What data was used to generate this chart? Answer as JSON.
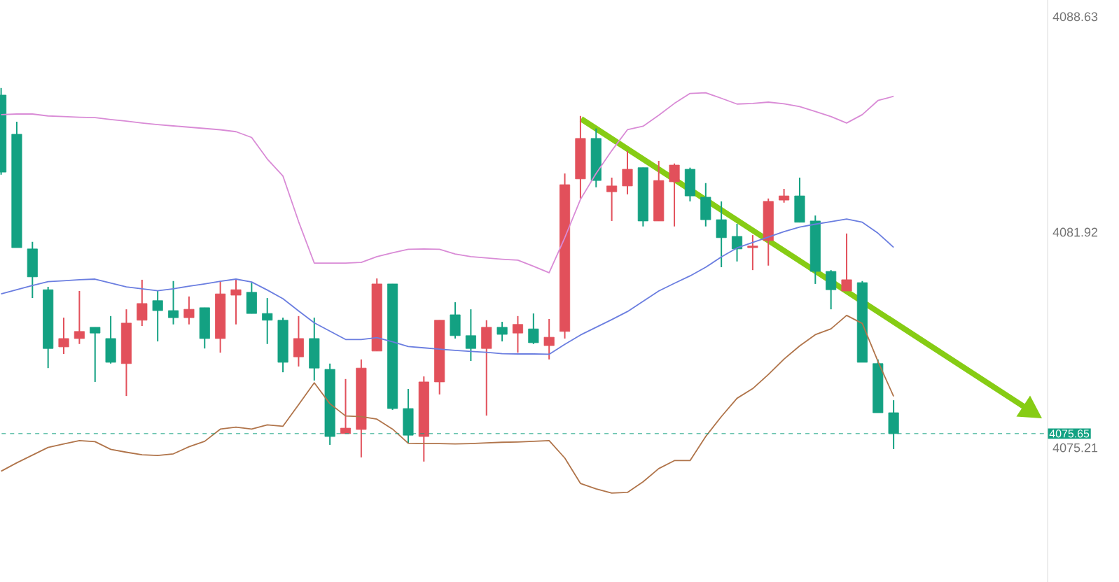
{
  "chart_data": {
    "type": "candlestick",
    "categories": [
      null,
      null,
      null,
      null,
      null,
      null,
      null,
      null,
      null,
      null,
      null,
      null,
      null,
      null,
      null,
      null,
      null,
      null,
      null,
      null,
      null,
      null,
      null,
      null,
      null,
      null,
      null,
      null,
      null,
      null,
      null,
      null,
      null,
      null,
      null,
      null,
      null,
      null,
      null,
      null,
      null,
      null,
      null,
      null,
      null,
      null,
      null,
      null,
      null,
      null,
      null,
      null,
      null,
      null,
      null,
      null,
      null,
      null
    ],
    "ohlc": [
      [
        4086.19,
        4086.41,
        4083.71,
        4083.79
      ],
      [
        4084.97,
        4085.36,
        4081.44,
        4081.44
      ],
      [
        4081.4,
        4081.62,
        4079.87,
        4080.53
      ],
      [
        4080.13,
        4080.22,
        4077.69,
        4078.3
      ],
      [
        4078.35,
        4079.26,
        4078.13,
        4078.61
      ],
      [
        4078.61,
        4080.09,
        4078.44,
        4078.83
      ],
      [
        4078.96,
        4078.96,
        4077.26,
        4078.78
      ],
      [
        4078.61,
        4079.31,
        4077.83,
        4077.87
      ],
      [
        4077.83,
        4079.52,
        4076.82,
        4079.09
      ],
      [
        4079.18,
        4080.44,
        4079.0,
        4079.7
      ],
      [
        4079.79,
        4080.09,
        4078.52,
        4079.48
      ],
      [
        4079.48,
        4080.4,
        4079.05,
        4079.26
      ],
      [
        4079.26,
        4079.92,
        4079.05,
        4079.52
      ],
      [
        4079.57,
        4079.57,
        4078.3,
        4078.61
      ],
      [
        4078.61,
        4080.4,
        4078.17,
        4080.0
      ],
      [
        4079.96,
        4080.44,
        4079.05,
        4080.13
      ],
      [
        4080.05,
        4080.35,
        4079.39,
        4079.39
      ],
      [
        4079.39,
        4079.87,
        4078.44,
        4079.18
      ],
      [
        4079.18,
        4079.26,
        4077.56,
        4077.87
      ],
      [
        4078.04,
        4079.31,
        4077.74,
        4078.61
      ],
      [
        4078.61,
        4079.26,
        4077.3,
        4077.69
      ],
      [
        4077.65,
        4077.83,
        4075.3,
        4075.56
      ],
      [
        4075.65,
        4077.35,
        4075.65,
        4075.82
      ],
      [
        4075.78,
        4077.96,
        4074.91,
        4077.69
      ],
      [
        4078.22,
        4080.48,
        4078.22,
        4080.31
      ],
      [
        4080.31,
        4080.31,
        4076.39,
        4076.43
      ],
      [
        4076.43,
        4077.04,
        4075.34,
        4075.6
      ],
      [
        4075.56,
        4077.43,
        4074.78,
        4077.26
      ],
      [
        4077.26,
        4079.18,
        4076.87,
        4079.18
      ],
      [
        4079.35,
        4079.74,
        4078.61,
        4078.7
      ],
      [
        4078.7,
        4079.52,
        4077.91,
        4078.3
      ],
      [
        4078.3,
        4079.18,
        4076.21,
        4078.96
      ],
      [
        4078.96,
        4079.13,
        4078.52,
        4078.74
      ],
      [
        4078.78,
        4079.31,
        4078.17,
        4079.05
      ],
      [
        4078.91,
        4079.39,
        4078.44,
        4078.48
      ],
      [
        4078.39,
        4079.22,
        4077.96,
        4078.65
      ],
      [
        4078.83,
        4083.75,
        4078.61,
        4083.4
      ],
      [
        4083.58,
        4085.54,
        4082.97,
        4084.84
      ],
      [
        4084.84,
        4085.15,
        4083.32,
        4083.53
      ],
      [
        4083.18,
        4083.62,
        4082.27,
        4083.36
      ],
      [
        4083.36,
        4084.45,
        4083.1,
        4083.88
      ],
      [
        4083.93,
        4083.93,
        4082.1,
        4082.27
      ],
      [
        4082.27,
        4084.14,
        4082.27,
        4083.53
      ],
      [
        4083.49,
        4084.06,
        4082.1,
        4084.01
      ],
      [
        4083.88,
        4083.93,
        4082.88,
        4083.05
      ],
      [
        4083.01,
        4083.45,
        4082.1,
        4082.31
      ],
      [
        4082.31,
        4082.88,
        4080.83,
        4081.75
      ],
      [
        4081.79,
        4082.18,
        4081.01,
        4081.4
      ],
      [
        4081.44,
        4081.83,
        4080.74,
        4081.49
      ],
      [
        4081.66,
        4082.97,
        4080.88,
        4082.88
      ],
      [
        4082.92,
        4083.27,
        4082.84,
        4083.05
      ],
      [
        4083.05,
        4083.62,
        4082.23,
        4082.23
      ],
      [
        4082.27,
        4082.44,
        4080.31,
        4080.7
      ],
      [
        4080.7,
        4080.74,
        4079.52,
        4080.13
      ],
      [
        4080.09,
        4081.88,
        4080.09,
        4080.44
      ],
      [
        4080.35,
        4080.4,
        4077.87,
        4077.87
      ],
      [
        4077.83,
        4077.96,
        4076.3,
        4076.3
      ],
      [
        4076.3,
        4076.69,
        4075.17,
        4075.65
      ]
    ],
    "colors": [
      "#13a182",
      "#13a182",
      "#13a182",
      "#13a182",
      "#e2505b",
      "#e2505b",
      "#13a182",
      "#13a182",
      "#e2505b",
      "#e2505b",
      "#13a182",
      "#13a182",
      "#e2505b",
      "#13a182",
      "#e2505b",
      "#e2505b",
      "#13a182",
      "#13a182",
      "#13a182",
      "#e2505b",
      "#13a182",
      "#13a182",
      "#e2505b",
      "#e2505b",
      "#e2505b",
      "#13a182",
      "#13a182",
      "#e2505b",
      "#e2505b",
      "#13a182",
      "#13a182",
      "#e2505b",
      "#13a182",
      "#e2505b",
      "#13a182",
      "#e2505b",
      "#e2505b",
      "#e2505b",
      "#13a182",
      "#e2505b",
      "#e2505b",
      "#13a182",
      "#e2505b",
      "#e2505b",
      "#13a182",
      "#13a182",
      "#13a182",
      "#13a182",
      "#e2505b",
      "#e2505b",
      "#e2505b",
      "#13a182",
      "#13a182",
      "#13a182",
      "#e2505b",
      "#13a182",
      "#13a182",
      "#13a182"
    ],
    "series": [
      {
        "type": "line",
        "color": "#d98bd6",
        "values": [
          4085.58,
          4085.6,
          4085.6,
          4085.54,
          4085.52,
          4085.5,
          4085.49,
          4085.43,
          4085.38,
          4085.32,
          4085.27,
          4085.23,
          4085.19,
          4085.15,
          4085.11,
          4085.05,
          4084.87,
          4084.2,
          4083.67,
          4082.25,
          4080.96,
          4080.96,
          4080.96,
          4080.98,
          4081.16,
          4081.28,
          4081.39,
          4081.4,
          4081.39,
          4081.24,
          4081.16,
          4081.12,
          4081.08,
          4081.05,
          4080.86,
          4080.66,
          4081.75,
          4082.94,
          4083.75,
          4084.46,
          4085.11,
          4085.22,
          4085.56,
          4085.93,
          4086.24,
          4086.26,
          4086.09,
          4085.91,
          4085.93,
          4085.97,
          4085.92,
          4085.83,
          4085.68,
          4085.52,
          4085.32,
          4085.58,
          4086.02,
          4086.15
        ]
      },
      {
        "type": "line",
        "color": "#6b7ee0",
        "values": [
          4080.0,
          4080.13,
          4080.26,
          4080.38,
          4080.41,
          4080.44,
          4080.46,
          4080.34,
          4080.22,
          4080.16,
          4080.1,
          4080.16,
          4080.24,
          4080.31,
          4080.39,
          4080.46,
          4080.37,
          4080.12,
          4079.85,
          4079.47,
          4079.1,
          4078.84,
          4078.58,
          4078.58,
          4078.64,
          4078.51,
          4078.36,
          4078.32,
          4078.28,
          4078.24,
          4078.21,
          4078.18,
          4078.14,
          4078.13,
          4078.13,
          4078.12,
          4078.43,
          4078.72,
          4078.96,
          4079.2,
          4079.45,
          4079.77,
          4080.09,
          4080.33,
          4080.56,
          4080.83,
          4081.15,
          4081.43,
          4081.6,
          4081.77,
          4081.94,
          4082.08,
          4082.17,
          4082.25,
          4082.33,
          4082.23,
          4081.89,
          4081.45
        ]
      },
      {
        "type": "line",
        "color": "#b0744a",
        "values": [
          4074.48,
          4074.74,
          4074.98,
          4075.22,
          4075.33,
          4075.43,
          4075.4,
          4075.16,
          4075.07,
          4074.99,
          4074.97,
          4075.02,
          4075.24,
          4075.41,
          4075.79,
          4075.85,
          4075.79,
          4075.92,
          4075.88,
          4076.55,
          4077.23,
          4076.58,
          4076.2,
          4076.18,
          4076.1,
          4075.79,
          4075.35,
          4075.34,
          4075.34,
          4075.33,
          4075.34,
          4075.36,
          4075.38,
          4075.39,
          4075.41,
          4075.43,
          4074.89,
          4074.1,
          4073.93,
          4073.8,
          4073.82,
          4074.15,
          4074.56,
          4074.81,
          4074.81,
          4075.56,
          4076.18,
          4076.75,
          4077.05,
          4077.49,
          4077.97,
          4078.38,
          4078.73,
          4078.91,
          4079.33,
          4079.08,
          4077.9,
          4076.81
        ]
      }
    ],
    "ylim": [
      4071.03,
      4089.15
    ],
    "yticks": [
      4088.63,
      4081.92,
      4075.21
    ],
    "tick_labels": "y",
    "ref_lines": [
      {
        "axis": "y",
        "value": 4075.65,
        "label": "4075.65",
        "color": "#13a182",
        "line_style": "dashed"
      }
    ]
  }
}
